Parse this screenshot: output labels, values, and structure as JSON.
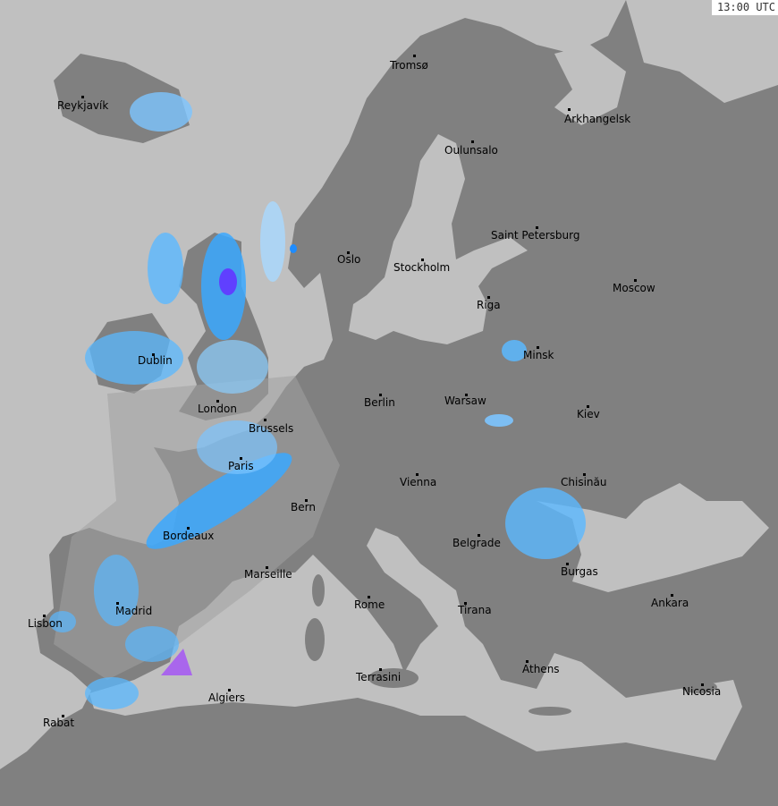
{
  "timestamp": "13:00 UTC",
  "colors": {
    "land": "#808080",
    "sea": "#c0c0c0",
    "coverage": "#9a9a9a",
    "precip_light": "#a8d8ff",
    "precip_mid": "#3aa8ff",
    "precip_heavy": "#1e5cff",
    "precip_extreme": "#a040ff"
  },
  "cities": [
    "Tromsø",
    "Reykjavík",
    "Arkhangelsk",
    "Oulunsalo",
    "Saint Petersburg",
    "Oslo",
    "Stockholm",
    "Moscow",
    "Riga",
    "Minsk",
    "Dublin",
    "Berlin",
    "Warsaw",
    "London",
    "Kiev",
    "Brussels",
    "Paris",
    "Vienna",
    "Chisinău",
    "Bern",
    "Bordeaux",
    "Belgrade",
    "Burgas",
    "Marseille",
    "Ankara",
    "Rome",
    "Madrid",
    "Tirana",
    "Lisbon",
    "Athens",
    "Terrasini",
    "Nicosia",
    "Algiers",
    "Rabat"
  ]
}
